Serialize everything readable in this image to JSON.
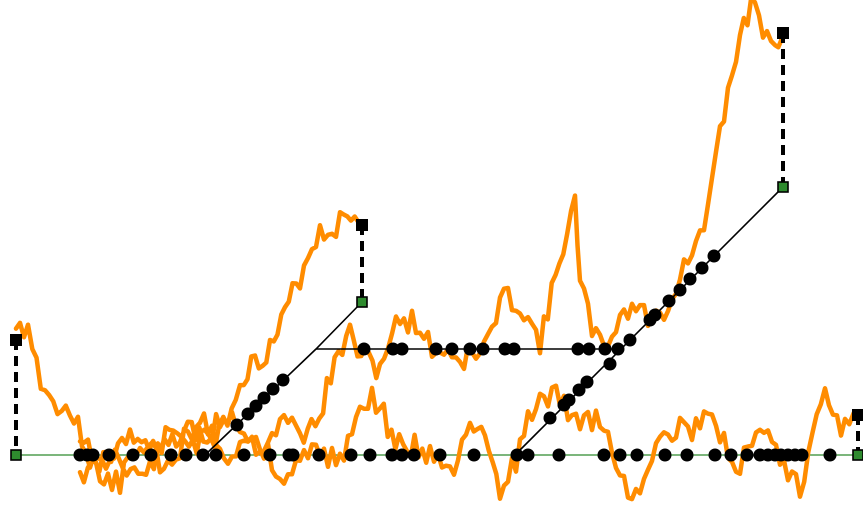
{
  "colors": {
    "signal": "#ff8c00",
    "baseline": "#2e8b2e",
    "path": "#000000",
    "dot": "#000000",
    "anchor_fill": "#2e8b2e",
    "anchor_stroke": "#000000",
    "connector": "#000000"
  }
}
